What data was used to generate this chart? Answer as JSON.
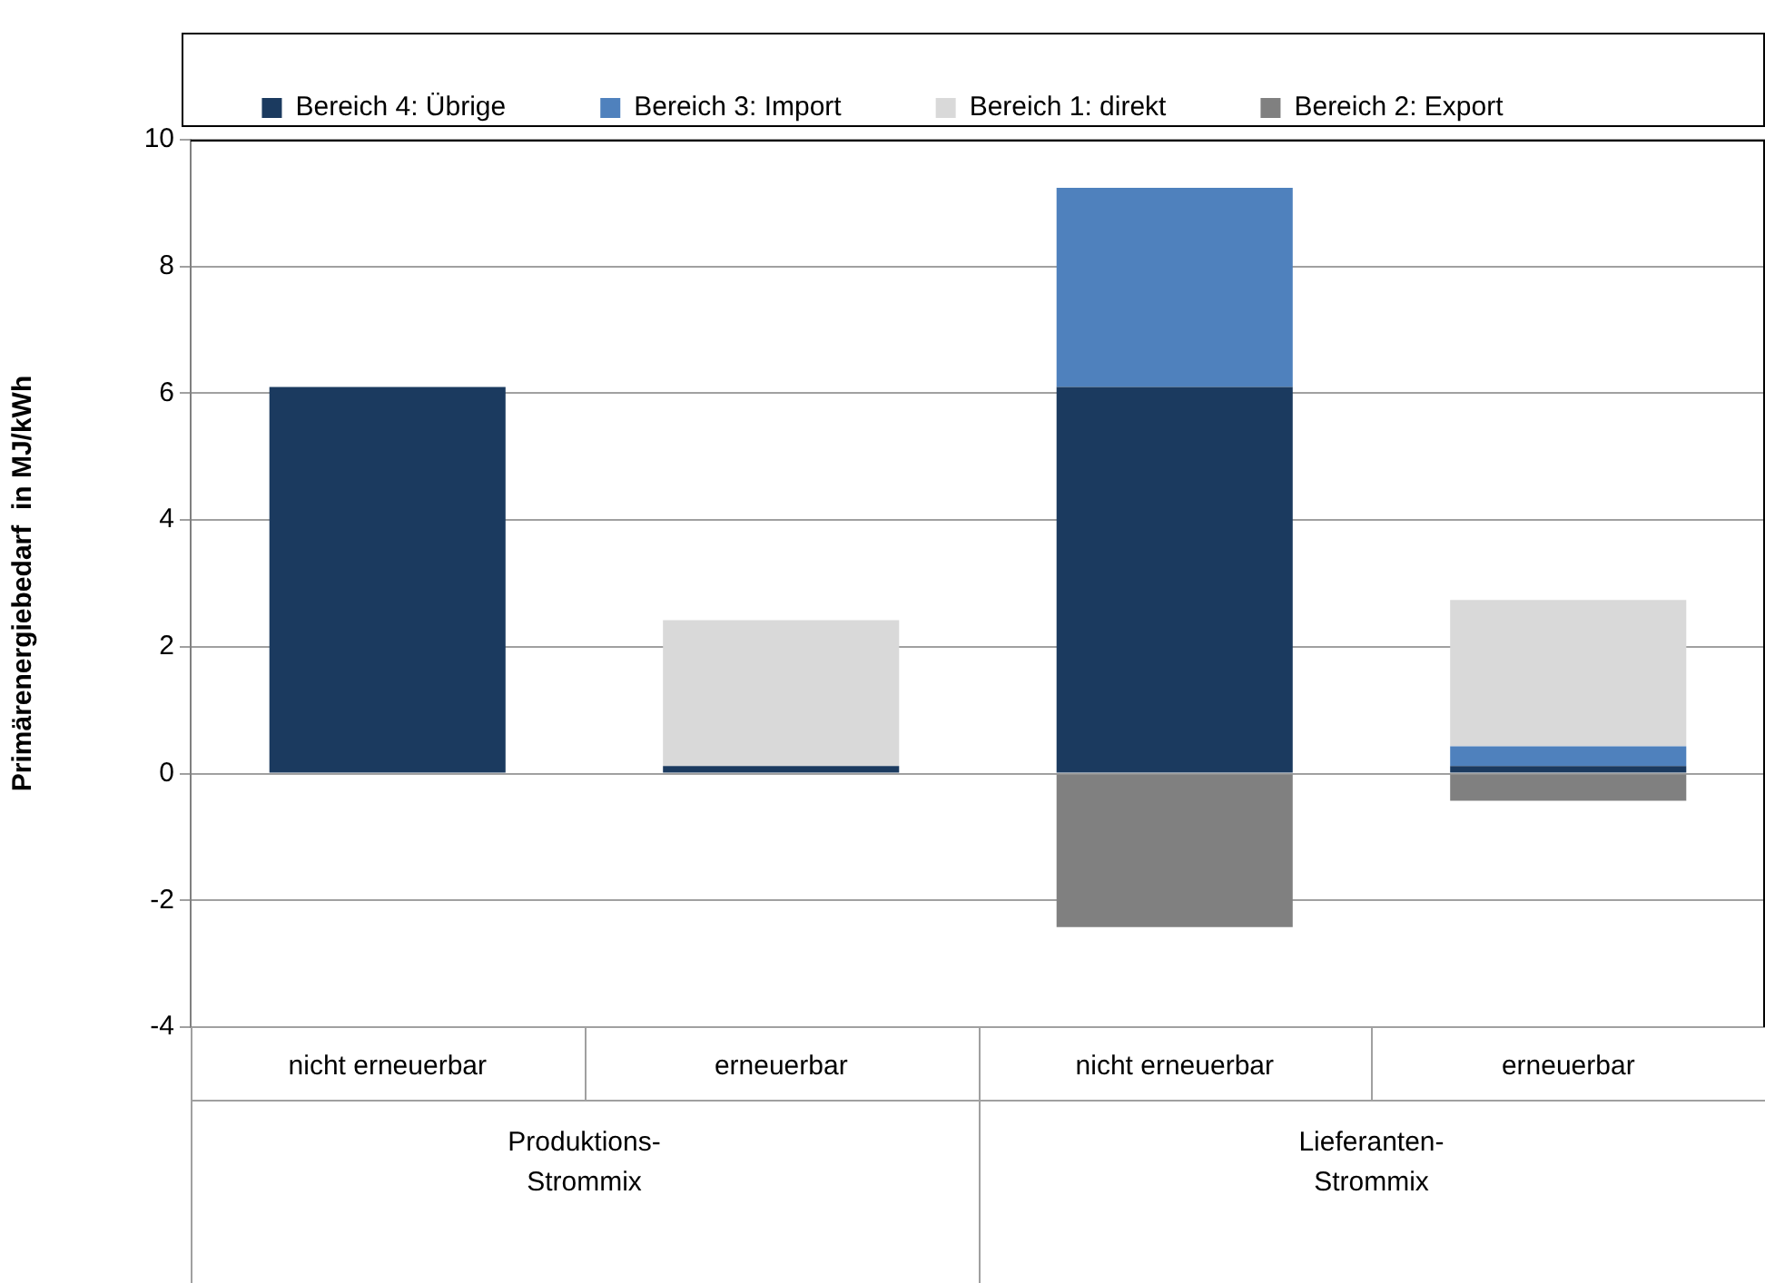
{
  "chart_data": {
    "type": "bar",
    "stacked": true,
    "ylabel": "Primärenergiebedarf  in MJ/kWh",
    "categories": [
      "nicht erneuerbar",
      "erneuerbar",
      "nicht erneuerbar",
      "erneuerbar"
    ],
    "series": [
      {
        "name": "Bereich 4: Übrige",
        "color": "#1b3a5f",
        "values": [
          6.1,
          0.12,
          6.1,
          0.12
        ]
      },
      {
        "name": "Bereich 3: Import",
        "color": "#4f81bd",
        "values": [
          null,
          null,
          3.14,
          0.31
        ]
      },
      {
        "name": "Bereich 1: direkt",
        "color": "#d9d9d9",
        "values": [
          null,
          2.3,
          null,
          2.31
        ]
      },
      {
        "name": "Bereich 2: Export",
        "color": "#808080",
        "values": [
          null,
          null,
          -2.42,
          -0.43
        ]
      }
    ],
    "ylim": [
      -4,
      10
    ],
    "yticks": [
      -4,
      -2,
      0,
      2,
      4,
      6,
      8,
      10
    ],
    "grid": "y",
    "legend": "top",
    "annotations": [
      "Produktions-Strommix",
      "Lieferanten-Strommix"
    ]
  }
}
